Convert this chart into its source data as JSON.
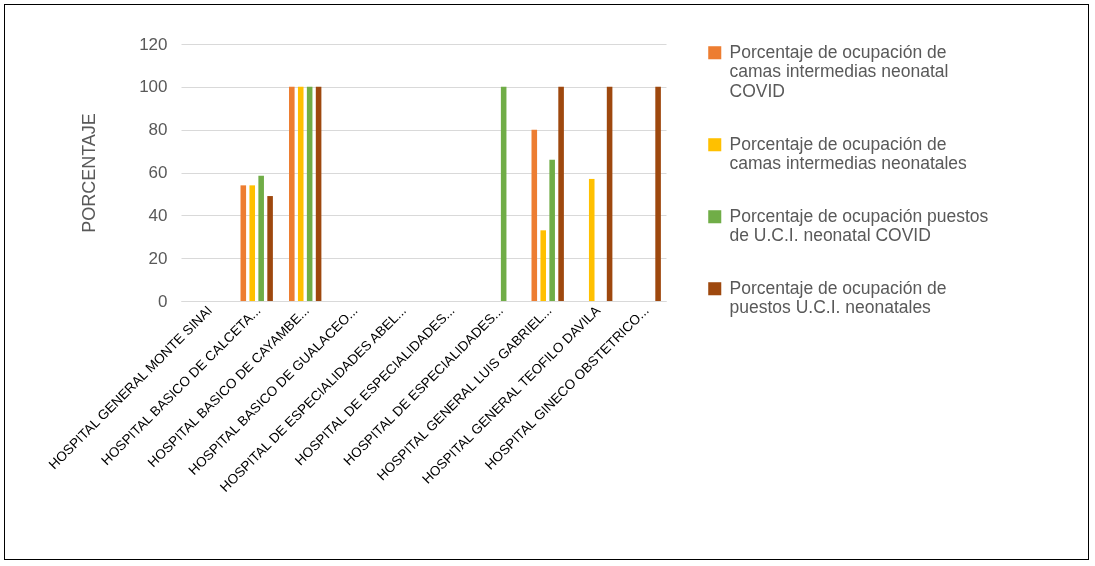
{
  "chart_data": {
    "type": "bar",
    "ylabel": "PORCENTAJE",
    "categories": [
      "HOSPITAL GENERAL MONTE SINAI",
      "HOSPITAL BASICO DE CALCETA...",
      "HOSPITAL BASICO DE CAYAMBE...",
      "HOSPITAL BASICO DE GUALACEO...",
      "HOSPITAL DE ESPECIALIDADES ABEL...",
      "HOSPITAL DE ESPECIALIDADES...",
      "HOSPITAL DE ESPECIALIDADES...",
      "HOSPITAL GENERAL LUIS GABRIEL...",
      "HOSPITAL GENERAL TEOFILO DAVILA",
      "HOSPITAL GINECO OBSTETRICO..."
    ],
    "series": [
      {
        "name": "Porcentaje de ocupación de camas intermedias neonatal COVID",
        "color": "#ed7d31",
        "values": [
          null,
          54,
          100,
          null,
          null,
          null,
          null,
          80,
          null,
          null
        ]
      },
      {
        "name": "Porcentaje de ocupación de camas intermedias neonatales",
        "color": "#ffc000",
        "values": [
          null,
          54,
          100,
          null,
          null,
          null,
          null,
          33,
          57,
          null
        ]
      },
      {
        "name": "Porcentaje de ocupación puestos de U.C.I. neonatal COVID",
        "color": "#70ad47",
        "values": [
          null,
          58.5,
          100,
          null,
          null,
          null,
          100,
          66,
          null,
          null
        ]
      },
      {
        "name": "Porcentaje de ocupación de puestos U.C.I. neonatales",
        "color": "#9e480e",
        "values": [
          null,
          49,
          100,
          null,
          null,
          null,
          null,
          100,
          100,
          100
        ]
      }
    ],
    "ylim": [
      0,
      120
    ],
    "yticks": [
      0,
      20,
      40,
      60,
      80,
      100,
      120
    ],
    "grid": "y",
    "legend": "right"
  }
}
